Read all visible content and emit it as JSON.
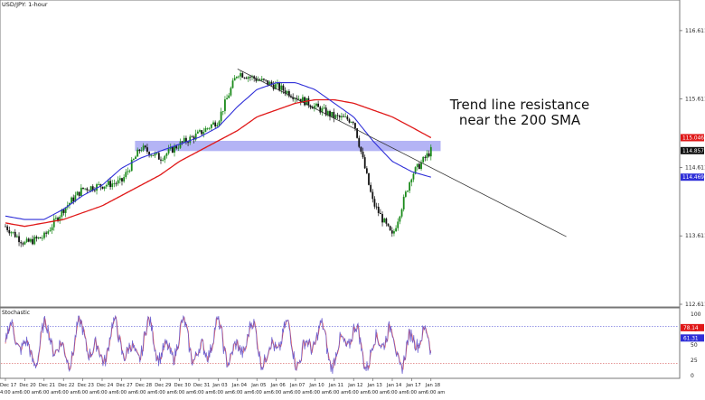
{
  "title": "USD/JPY: 1-hour",
  "annotation": {
    "line1": "Trend line resistance",
    "line2": "near the 200 SMA"
  },
  "colors": {
    "sma_fast": "#2f2fd8",
    "sma_slow": "#e01818",
    "trendline": "#333333",
    "zone": "#8c8cf0",
    "candle_up": "#1a8a1a",
    "candle_down": "#111111",
    "stoch_k": "#6b5fd0",
    "stoch_d": "#e04a4a",
    "price_badge_red": "#e01818",
    "price_badge_black": "#111111",
    "price_badge_blue": "#2f2fd8"
  },
  "chart_data": [
    {
      "type": "candlestick",
      "title": "USD/JPY: 1-hour",
      "ylim": [
        112.611,
        116.9
      ],
      "y_ticks": [
        "116.611",
        "115.611",
        "114.611",
        "113.611",
        "112.611"
      ],
      "x_categories": [
        "Dec 17",
        "Dec 20",
        "Dec 21",
        "Dec 22",
        "Dec 23",
        "Dec 24",
        "Dec 27",
        "Dec 28",
        "Dec 29",
        "Dec 30",
        "Dec 31",
        "Jan 03",
        "Jan 04",
        "Jan 05",
        "Jan 06",
        "Jan 07",
        "Jan 10",
        "Jan 11",
        "Jan 12",
        "Jan 13",
        "Jan 14",
        "Jan 17",
        "Jan 18"
      ],
      "price_path": [
        [
          0,
          113.75
        ],
        [
          1,
          113.5
        ],
        [
          2,
          113.6
        ],
        [
          3,
          114.0
        ],
        [
          4,
          114.3
        ],
        [
          5,
          114.35
        ],
        [
          6,
          114.4
        ],
        [
          7,
          114.9
        ],
        [
          8,
          114.75
        ],
        [
          9,
          114.95
        ],
        [
          10,
          115.1
        ],
        [
          11,
          115.3
        ],
        [
          12,
          116.0
        ],
        [
          13,
          115.9
        ],
        [
          14,
          115.8
        ],
        [
          15,
          115.65
        ],
        [
          16,
          115.5
        ],
        [
          17,
          115.35
        ],
        [
          18,
          115.3
        ],
        [
          19,
          114.1
        ],
        [
          20,
          113.6
        ],
        [
          21,
          114.5
        ],
        [
          22,
          114.857
        ]
      ],
      "sma_fast_path": [
        [
          0,
          113.9
        ],
        [
          1,
          113.85
        ],
        [
          2,
          113.85
        ],
        [
          3,
          114.0
        ],
        [
          4,
          114.2
        ],
        [
          5,
          114.35
        ],
        [
          6,
          114.6
        ],
        [
          7,
          114.75
        ],
        [
          8,
          114.85
        ],
        [
          9,
          114.95
        ],
        [
          10,
          115.05
        ],
        [
          11,
          115.2
        ],
        [
          12,
          115.5
        ],
        [
          13,
          115.75
        ],
        [
          14,
          115.85
        ],
        [
          15,
          115.85
        ],
        [
          16,
          115.75
        ],
        [
          17,
          115.55
        ],
        [
          18,
          115.35
        ],
        [
          19,
          115.0
        ],
        [
          20,
          114.7
        ],
        [
          21,
          114.55
        ],
        [
          22,
          114.469
        ]
      ],
      "sma_slow_path": [
        [
          0,
          113.8
        ],
        [
          1,
          113.75
        ],
        [
          2,
          113.8
        ],
        [
          3,
          113.85
        ],
        [
          4,
          113.95
        ],
        [
          5,
          114.05
        ],
        [
          6,
          114.2
        ],
        [
          7,
          114.35
        ],
        [
          8,
          114.5
        ],
        [
          9,
          114.7
        ],
        [
          10,
          114.85
        ],
        [
          11,
          115.0
        ],
        [
          12,
          115.15
        ],
        [
          13,
          115.35
        ],
        [
          14,
          115.45
        ],
        [
          15,
          115.55
        ],
        [
          16,
          115.6
        ],
        [
          17,
          115.6
        ],
        [
          18,
          115.55
        ],
        [
          19,
          115.45
        ],
        [
          20,
          115.35
        ],
        [
          21,
          115.2
        ],
        [
          22,
          115.046
        ]
      ],
      "trendline": [
        [
          12,
          116.05
        ],
        [
          29,
          113.6
        ]
      ],
      "resistance_zone": [
        114.85,
        115.0
      ],
      "price_labels": [
        {
          "value": 115.046,
          "text": "115.046",
          "color": "red"
        },
        {
          "value": 114.857,
          "text": "114.857",
          "color": "black"
        },
        {
          "value": 114.469,
          "text": "114.469",
          "color": "blue"
        }
      ],
      "annotation": "Trend line resistance near the 200 SMA"
    },
    {
      "type": "line",
      "title": "Stochastic",
      "ylim": [
        0,
        100
      ],
      "y_ticks": [
        "100",
        "75",
        "50",
        "25",
        "0"
      ],
      "levels": [
        80,
        20
      ],
      "current_values": [
        {
          "value": 78.14,
          "text": "78.14",
          "color": "red"
        },
        {
          "value": 61.31,
          "text": "61.31",
          "color": "blue"
        }
      ]
    }
  ],
  "date_labels": [
    "4:00 am",
    "6:00 am",
    "6:00 am",
    "6:00 am",
    "6:00 am",
    "6:00 am",
    "6:00 am",
    "6:00 am",
    "6:00 am",
    "6:00 am",
    "6:00 am",
    "6:00 am",
    "6:00 am",
    "6:00 am",
    "6:00 am",
    "6:00 am",
    "6:00 am",
    "6:00 am",
    "6:00 am",
    "6:00 am",
    "6:00 am",
    "6:00 am",
    "6:00 am"
  ]
}
